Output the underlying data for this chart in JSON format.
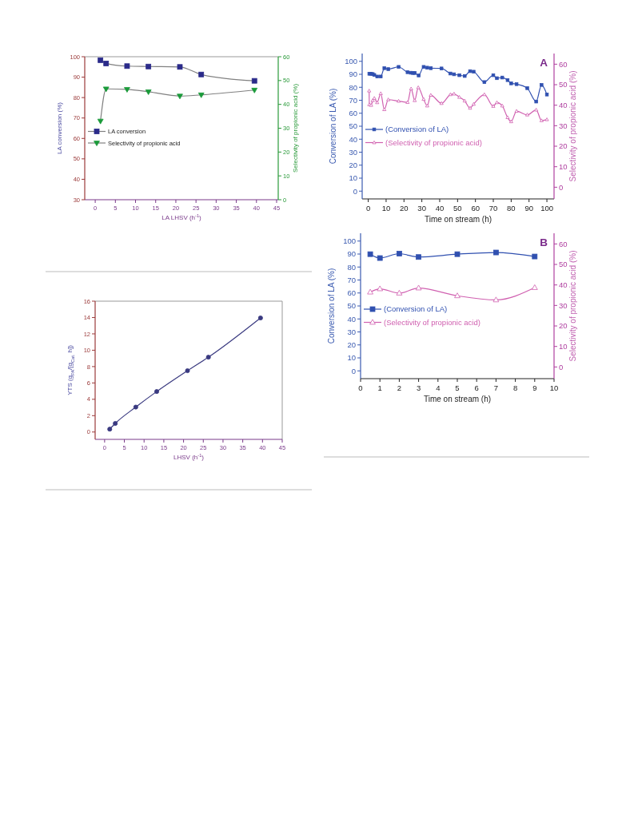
{
  "chart_data": [
    {
      "type": "line",
      "xlabel": "LA LHSV (h$^{-1}$)",
      "ylabel": "LA conversion (%)",
      "y2label": "Selectivity of propionic acid (%)",
      "xlim": [
        -2.6,
        45.4
      ],
      "xticks": [
        0,
        5,
        10,
        15,
        20,
        25,
        30,
        35,
        40,
        45
      ],
      "ylim": [
        30,
        100
      ],
      "yticks": [
        30,
        40,
        50,
        60,
        70,
        80,
        90,
        100
      ],
      "y2lim": [
        0,
        60
      ],
      "y2ticks": [
        0,
        10,
        20,
        30,
        40,
        50,
        60
      ],
      "legend": "left",
      "series": [
        {
          "name": "LA conversion",
          "color": "#2b2b8a",
          "marker": "square",
          "x": [
            1.3,
            2.7,
            7.9,
            13.2,
            21,
            26.3,
            39.5
          ],
          "values": [
            98.3,
            96.7,
            95.4,
            95.2,
            95,
            91.3,
            88.2
          ]
        },
        {
          "name": "Selectivity of propionic acid",
          "color": "#1a9a3a",
          "marker": "triangle",
          "axis": "y2",
          "x": [
            1.3,
            2.7,
            7.9,
            13.2,
            21,
            26.3,
            39.5
          ],
          "values": [
            33,
            46.5,
            46.3,
            45.3,
            43.5,
            44,
            46
          ]
        }
      ]
    },
    {
      "type": "line",
      "xlabel": "LHSV (h$^{-1}$)",
      "ylabel": "YTS (g$_{PA}$/[g$_{Cat.}$ h])",
      "xlim": [
        -2.4,
        45
      ],
      "xticks": [
        0,
        5,
        10,
        15,
        20,
        25,
        30,
        35,
        40,
        45
      ],
      "ylim": [
        -0.9,
        16
      ],
      "yticks": [
        0,
        2,
        4,
        6,
        8,
        10,
        12,
        14,
        16
      ],
      "marker": "circle",
      "series": [
        {
          "color": "#3a3a80",
          "x": [
            1.3,
            2.7,
            7.9,
            13.2,
            21,
            26.3,
            39.5
          ],
          "values": [
            0.35,
            1.05,
            3.05,
            4.95,
            7.5,
            9.15,
            13.95
          ]
        }
      ]
    },
    {
      "type": "line",
      "title": "A",
      "xlabel": "Time on stream (h)",
      "ylabel": "Conversion of LA (%)",
      "y2label": "Selectivity of propionic acid (%)",
      "xlim": [
        -3.4,
        104
      ],
      "xticks": [
        0,
        10,
        20,
        30,
        40,
        50,
        60,
        70,
        80,
        90,
        100
      ],
      "ylim": [
        -6,
        106
      ],
      "yticks": [
        0,
        10,
        20,
        30,
        40,
        50,
        60,
        70,
        80,
        90,
        100
      ],
      "y2lim": [
        -5.7,
        65.2
      ],
      "y2ticks": [
        0,
        10,
        20,
        30,
        40,
        50,
        60
      ],
      "legend": "left",
      "series": [
        {
          "name": "(Conversion of LA)",
          "color": "#3050b0",
          "marker": "square",
          "x": [
            0.6,
            1.5,
            2.5,
            3.4,
            5,
            7,
            9,
            11.2,
            17,
            22,
            23.8,
            25,
            26,
            28.2,
            31,
            33,
            35,
            41,
            46,
            48,
            51,
            54,
            57,
            59,
            65,
            70,
            72,
            75,
            78,
            80,
            83,
            89,
            94,
            97,
            100
          ],
          "values": [
            90.4,
            90.4,
            90.2,
            89.5,
            88.3,
            88.3,
            94.7,
            94,
            95.7,
            91.6,
            91.2,
            91,
            91,
            89.1,
            95.7,
            95.1,
            94.7,
            94.5,
            90.6,
            90,
            89.3,
            88.7,
            92.4,
            92,
            84,
            89.3,
            87,
            87.5,
            85.5,
            83,
            82.4,
            79.3,
            69,
            81.8,
            74.4
          ]
        },
        {
          "name": "(Selectivity of propionic acid)",
          "color": "#d060b0",
          "marker": "triangle",
          "axis": "y2",
          "x": [
            0.5,
            0.6,
            1.6,
            2.5,
            3.4,
            5,
            7,
            9,
            11.2,
            17,
            22,
            24,
            26,
            28,
            31,
            33,
            35,
            41,
            46,
            48,
            51,
            54,
            57,
            59,
            65,
            70,
            72,
            75,
            78,
            80,
            83,
            89,
            94,
            97,
            100
          ],
          "values": [
            47,
            40.3,
            40,
            42.3,
            43.4,
            41.3,
            45.7,
            37.9,
            42.7,
            42,
            41.4,
            48,
            42.3,
            48.6,
            42.9,
            39.7,
            44.9,
            40.9,
            45.2,
            45.5,
            43.9,
            42.1,
            38.6,
            40.5,
            45.2,
            39.5,
            41.3,
            39.7,
            34,
            32,
            37.1,
            35.3,
            37.7,
            32.5,
            33
          ]
        }
      ]
    },
    {
      "type": "line",
      "title": "B",
      "xlabel": "Time on stream (h)",
      "ylabel": "Conversion of LA (%)",
      "y2label": "Selectivity of propionic acid (%)",
      "xlim": [
        0,
        10
      ],
      "xticks": [
        0,
        1,
        2,
        3,
        4,
        5,
        6,
        7,
        8,
        9,
        10
      ],
      "ylim": [
        -6,
        106
      ],
      "yticks": [
        0,
        10,
        20,
        30,
        40,
        50,
        60,
        70,
        80,
        90,
        100
      ],
      "y2lim": [
        -5.7,
        65.2
      ],
      "y2ticks": [
        0,
        10,
        20,
        30,
        40,
        50,
        60
      ],
      "legend": "left",
      "series": [
        {
          "name": "(Conversion of LA)",
          "color": "#3050b0",
          "marker": "square",
          "x": [
            0.5,
            1,
            2,
            3,
            5,
            7,
            9
          ],
          "values": [
            89.9,
            86.9,
            90.3,
            87.7,
            89.9,
            91.2,
            88.1
          ]
        },
        {
          "name": "(Selectivity of propionic acid)",
          "color": "#d060b0",
          "marker": "triangle",
          "axis": "y2",
          "x": [
            0.5,
            1,
            2,
            3,
            5,
            7,
            9
          ],
          "values": [
            36.5,
            38.1,
            36,
            38.5,
            34.7,
            32.7,
            38.7
          ]
        }
      ]
    }
  ]
}
